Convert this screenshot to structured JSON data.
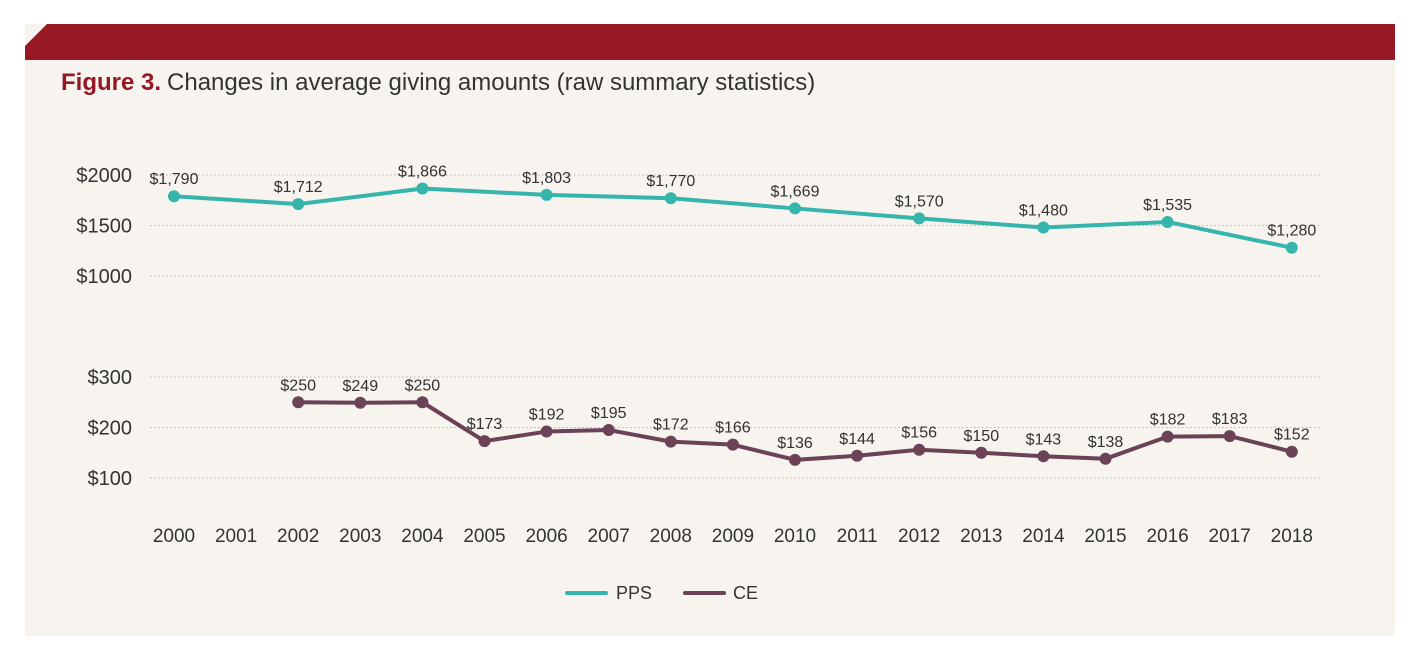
{
  "figure": {
    "label": "Figure 3.",
    "title": "Changes in average giving amounts (raw summary statistics)"
  },
  "colors": {
    "banner": "#961824",
    "background": "#f7f3ee",
    "pps": "#36b5ac",
    "ce": "#6b4256"
  },
  "chart_data": {
    "type": "line",
    "title": "Changes in average giving amounts (raw summary statistics)",
    "xlabel": "",
    "ylabel": "",
    "grid": true,
    "legend": "bottom-center",
    "categories": [
      "2000",
      "2001",
      "2002",
      "2003",
      "2004",
      "2005",
      "2006",
      "2007",
      "2008",
      "2009",
      "2010",
      "2011",
      "2012",
      "2013",
      "2014",
      "2015",
      "2016",
      "2017",
      "2018"
    ],
    "axes": [
      {
        "name": "upper",
        "ylim": [
          1000,
          2000
        ],
        "ticks": [
          2000,
          1500,
          1000
        ],
        "tick_labels": [
          "$2000",
          "$1500",
          "$1000"
        ]
      },
      {
        "name": "lower",
        "ylim": [
          100,
          300
        ],
        "ticks": [
          300,
          200,
          100
        ],
        "tick_labels": [
          "$300",
          "$200",
          "$100"
        ]
      }
    ],
    "series": [
      {
        "name": "PPS",
        "axis": "upper",
        "x": [
          "2000",
          "2002",
          "2004",
          "2006",
          "2008",
          "2010",
          "2012",
          "2014",
          "2016",
          "2018"
        ],
        "values": [
          1790,
          1712,
          1866,
          1803,
          1770,
          1669,
          1570,
          1480,
          1535,
          1280
        ],
        "labels": [
          "$1,790",
          "$1,712",
          "$1,866",
          "$1,803",
          "$1,770",
          "$1,669",
          "$1,570",
          "$1,480",
          "$1,535",
          "$1,280"
        ]
      },
      {
        "name": "CE",
        "axis": "lower",
        "x": [
          "2002",
          "2003",
          "2004",
          "2005",
          "2006",
          "2007",
          "2008",
          "2009",
          "2010",
          "2011",
          "2012",
          "2013",
          "2014",
          "2015",
          "2016",
          "2017",
          "2018"
        ],
        "values": [
          250,
          249,
          250,
          173,
          192,
          195,
          172,
          166,
          136,
          144,
          156,
          150,
          143,
          138,
          182,
          183,
          152
        ],
        "labels": [
          "$250",
          "$249",
          "$250",
          "$173",
          "$192",
          "$195",
          "$172",
          "$166",
          "$136",
          "$144",
          "$156",
          "$150",
          "$143",
          "$138",
          "$182",
          "$183",
          "$152"
        ]
      }
    ]
  }
}
